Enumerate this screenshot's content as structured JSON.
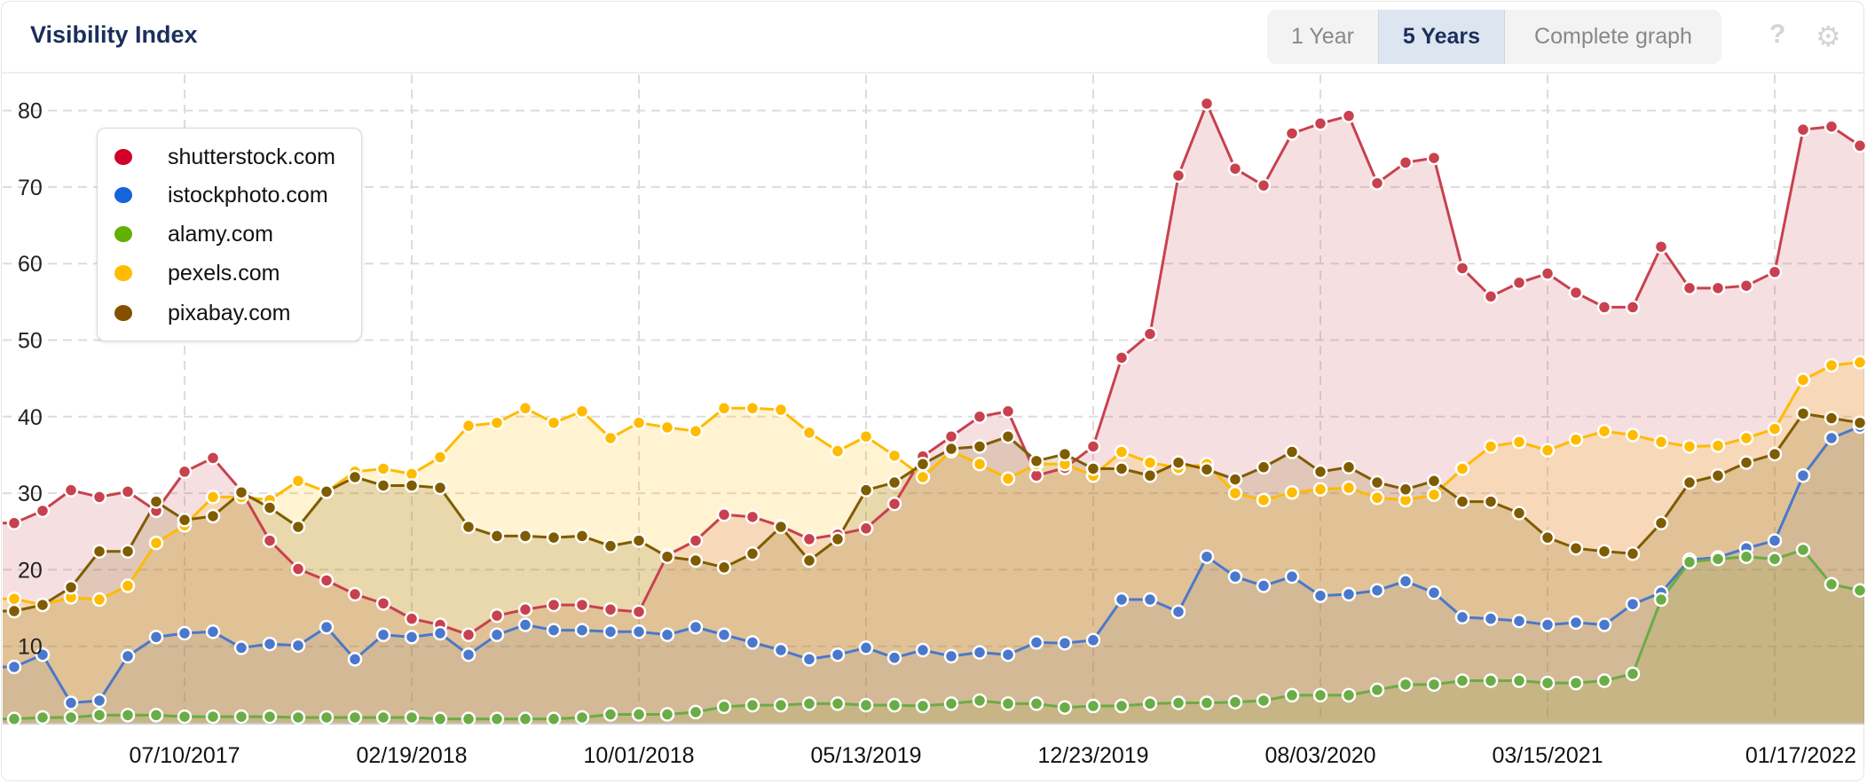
{
  "header": {
    "title": "Visibility Index",
    "ranges": [
      "1 Year",
      "5 Years",
      "Complete graph"
    ],
    "active_range": "5 Years",
    "help_icon": "?",
    "settings_icon": "gear"
  },
  "chart_data": {
    "type": "area",
    "title": "Visibility Index",
    "x_start": "01/23/2017",
    "x_step_days": 28,
    "x_tick_labels": [
      "07/10/2017",
      "02/19/2018",
      "10/01/2018",
      "05/13/2019",
      "12/23/2019",
      "08/03/2020",
      "03/15/2021",
      "01/17/2022"
    ],
    "y_tick_labels": [
      "10",
      "20",
      "30",
      "40",
      "50",
      "60",
      "70",
      "80"
    ],
    "ylim": [
      0,
      85
    ],
    "grid": true,
    "legend_position": "top-left",
    "series": [
      {
        "name": "shutterstock.com",
        "color": "#c8414f",
        "fill": "rgba(200,65,79,0.17)",
        "values": [
          26.1,
          27.7,
          30.4,
          29.5,
          30.2,
          27.7,
          32.8,
          34.6,
          30.3,
          23.8,
          20.1,
          18.6,
          16.8,
          15.6,
          13.6,
          12.8,
          11.5,
          14.0,
          14.8,
          15.4,
          15.4,
          14.8,
          14.5,
          21.9,
          23.8,
          27.2,
          26.9,
          25.7,
          24.0,
          24.6,
          25.4,
          28.6,
          34.8,
          37.4,
          40.0,
          40.7,
          32.3,
          33.3,
          36.1,
          47.7,
          50.8,
          71.5,
          80.9,
          72.4,
          70.2,
          77.0,
          78.3,
          79.3,
          70.5,
          73.2,
          73.8,
          59.4,
          55.7,
          57.5,
          58.7,
          56.2,
          54.3,
          54.3,
          62.2,
          56.8,
          56.8,
          57.1,
          58.9,
          77.5,
          77.9,
          75.4
        ]
      },
      {
        "name": "istockphoto.com",
        "color": "#4a78cc",
        "fill": "rgba(74,120,204,0.12)",
        "values": [
          7.3,
          8.9,
          2.6,
          2.9,
          8.7,
          11.2,
          11.7,
          11.9,
          9.8,
          10.3,
          10.1,
          12.5,
          8.3,
          11.5,
          11.2,
          11.7,
          8.9,
          11.5,
          12.8,
          12.1,
          12.1,
          11.9,
          11.9,
          11.5,
          12.5,
          11.5,
          10.5,
          9.5,
          8.3,
          8.9,
          9.8,
          8.5,
          9.5,
          8.7,
          9.2,
          8.9,
          10.5,
          10.4,
          10.8,
          16.1,
          16.1,
          14.5,
          21.7,
          19.1,
          17.9,
          19.1,
          16.6,
          16.8,
          17.3,
          18.5,
          17.0,
          13.8,
          13.6,
          13.3,
          12.8,
          13.1,
          12.8,
          15.5,
          17.0,
          21.3,
          21.6,
          22.8,
          23.8,
          32.3,
          37.2,
          38.7
        ]
      },
      {
        "name": "alamy.com",
        "color": "#6aac45",
        "fill": "rgba(106,172,69,0.15)",
        "values": [
          0.5,
          0.7,
          0.7,
          1.0,
          1.0,
          1.0,
          0.8,
          0.8,
          0.8,
          0.8,
          0.7,
          0.7,
          0.7,
          0.7,
          0.7,
          0.5,
          0.5,
          0.5,
          0.5,
          0.5,
          0.7,
          1.1,
          1.1,
          1.1,
          1.4,
          2.1,
          2.3,
          2.3,
          2.5,
          2.5,
          2.3,
          2.3,
          2.2,
          2.5,
          2.9,
          2.5,
          2.5,
          2.0,
          2.2,
          2.2,
          2.5,
          2.6,
          2.6,
          2.7,
          2.9,
          3.6,
          3.6,
          3.6,
          4.3,
          5.0,
          5.0,
          5.5,
          5.5,
          5.5,
          5.2,
          5.2,
          5.5,
          6.4,
          16.1,
          21.0,
          21.4,
          21.7,
          21.4,
          22.6,
          18.1,
          17.3
        ]
      },
      {
        "name": "pexels.com",
        "color": "#ffbb00",
        "fill": "rgba(255,187,0,0.18)",
        "values": [
          16.2,
          15.4,
          16.4,
          16.1,
          17.9,
          23.5,
          25.8,
          29.5,
          29.5,
          29.1,
          31.6,
          30.2,
          32.8,
          33.2,
          32.5,
          34.7,
          38.8,
          39.2,
          41.1,
          39.2,
          40.7,
          37.2,
          39.2,
          38.6,
          38.1,
          41.1,
          41.1,
          40.9,
          37.9,
          35.5,
          37.4,
          34.9,
          32.1,
          35.5,
          33.8,
          31.9,
          33.8,
          33.8,
          32.3,
          35.4,
          34.0,
          33.3,
          33.8,
          30.0,
          29.1,
          30.1,
          30.5,
          30.7,
          29.4,
          29.1,
          29.8,
          33.2,
          36.1,
          36.7,
          35.6,
          37.0,
          38.1,
          37.6,
          36.7,
          36.1,
          36.2,
          37.2,
          38.4,
          44.8,
          46.7,
          47.1
        ]
      },
      {
        "name": "pixabay.com",
        "color": "#7f5c00",
        "fill": "rgba(127,92,0,0.18)",
        "values": [
          14.6,
          15.4,
          17.7,
          22.4,
          22.4,
          28.9,
          26.5,
          27.0,
          30.1,
          28.1,
          25.6,
          30.2,
          32.1,
          31.0,
          31.0,
          30.7,
          25.6,
          24.4,
          24.4,
          24.2,
          24.4,
          23.1,
          23.8,
          21.7,
          21.2,
          20.3,
          22.1,
          25.6,
          21.2,
          24.0,
          30.4,
          31.4,
          33.8,
          35.8,
          36.1,
          37.4,
          34.2,
          35.1,
          33.2,
          33.2,
          32.3,
          34.0,
          33.1,
          31.8,
          33.4,
          35.4,
          32.8,
          33.4,
          31.4,
          30.5,
          31.6,
          28.9,
          28.9,
          27.4,
          24.2,
          22.8,
          22.4,
          22.1,
          26.1,
          31.4,
          32.3,
          34.0,
          35.1,
          40.4,
          39.8,
          39.2
        ]
      }
    ]
  }
}
